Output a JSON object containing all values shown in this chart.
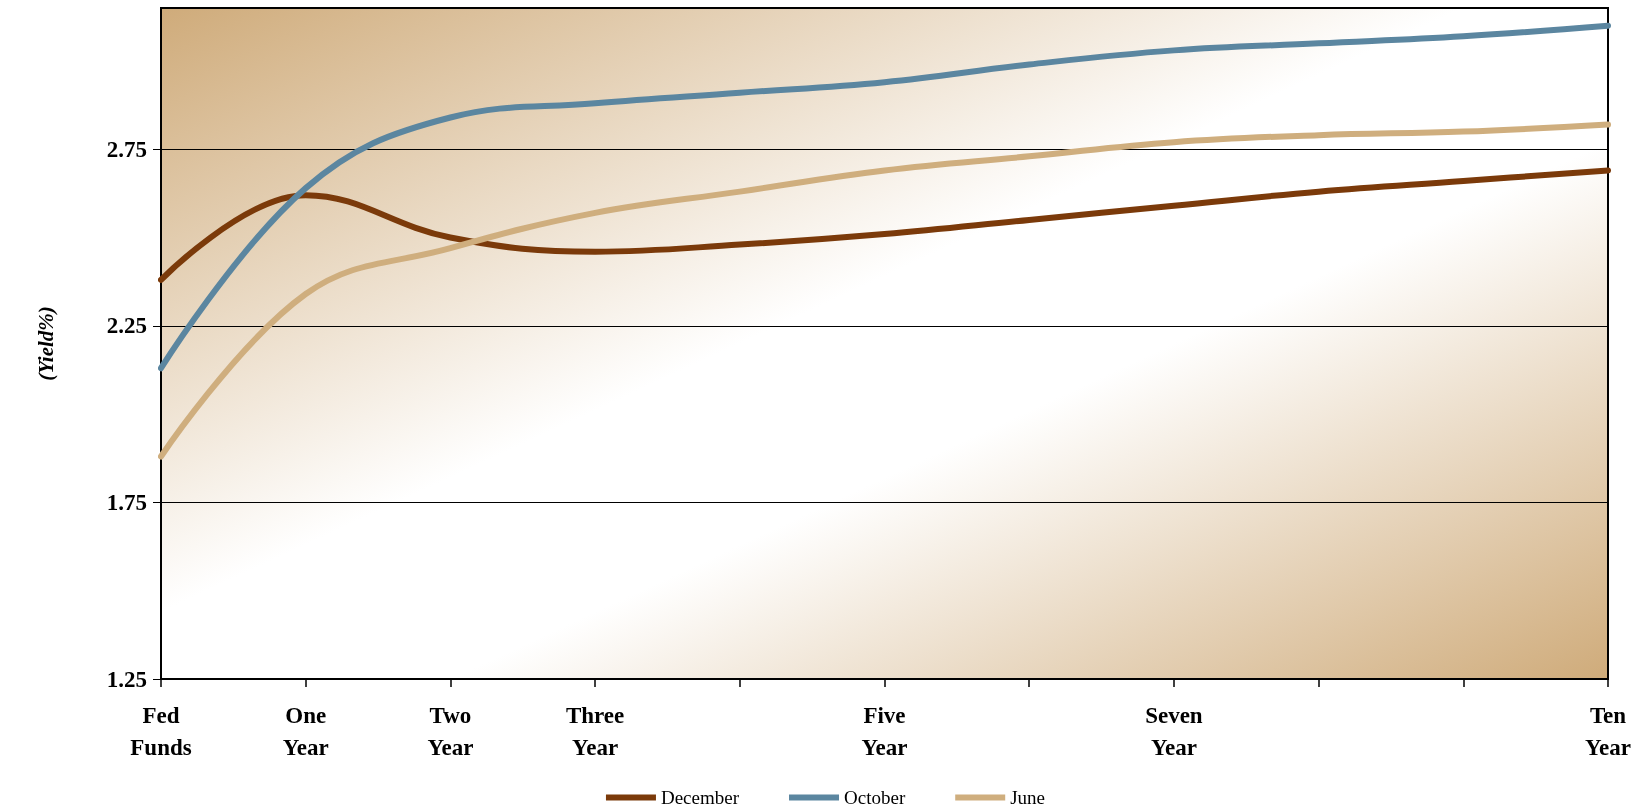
{
  "chart_data": {
    "type": "line",
    "ylabel": "(Yield%)",
    "categories": [
      "Fed Funds",
      "One Year",
      "Two Year",
      "Three Year",
      null,
      "Five Year",
      null,
      "Seven Year",
      null,
      null,
      "Ten Year"
    ],
    "series": [
      {
        "name": "December",
        "color": "#7b3a0a",
        "values": [
          2.38,
          2.62,
          2.5,
          2.46,
          2.48,
          2.51,
          2.55,
          2.59,
          2.63,
          2.66,
          2.69
        ]
      },
      {
        "name": "October",
        "color": "#5b86a0",
        "values": [
          2.13,
          2.64,
          2.84,
          2.88,
          2.91,
          2.94,
          2.99,
          3.03,
          3.05,
          3.07,
          3.1
        ]
      },
      {
        "name": "June",
        "color": "#cfae7e",
        "values": [
          1.88,
          2.34,
          2.47,
          2.57,
          2.63,
          2.69,
          2.73,
          2.77,
          2.79,
          2.8,
          2.82
        ]
      }
    ],
    "ylim": [
      1.25,
      3.15
    ],
    "yticks": [
      1.25,
      1.75,
      2.25,
      2.75
    ],
    "grid": "y",
    "legend": "bottom",
    "marker": "none",
    "line_style": "solid"
  }
}
